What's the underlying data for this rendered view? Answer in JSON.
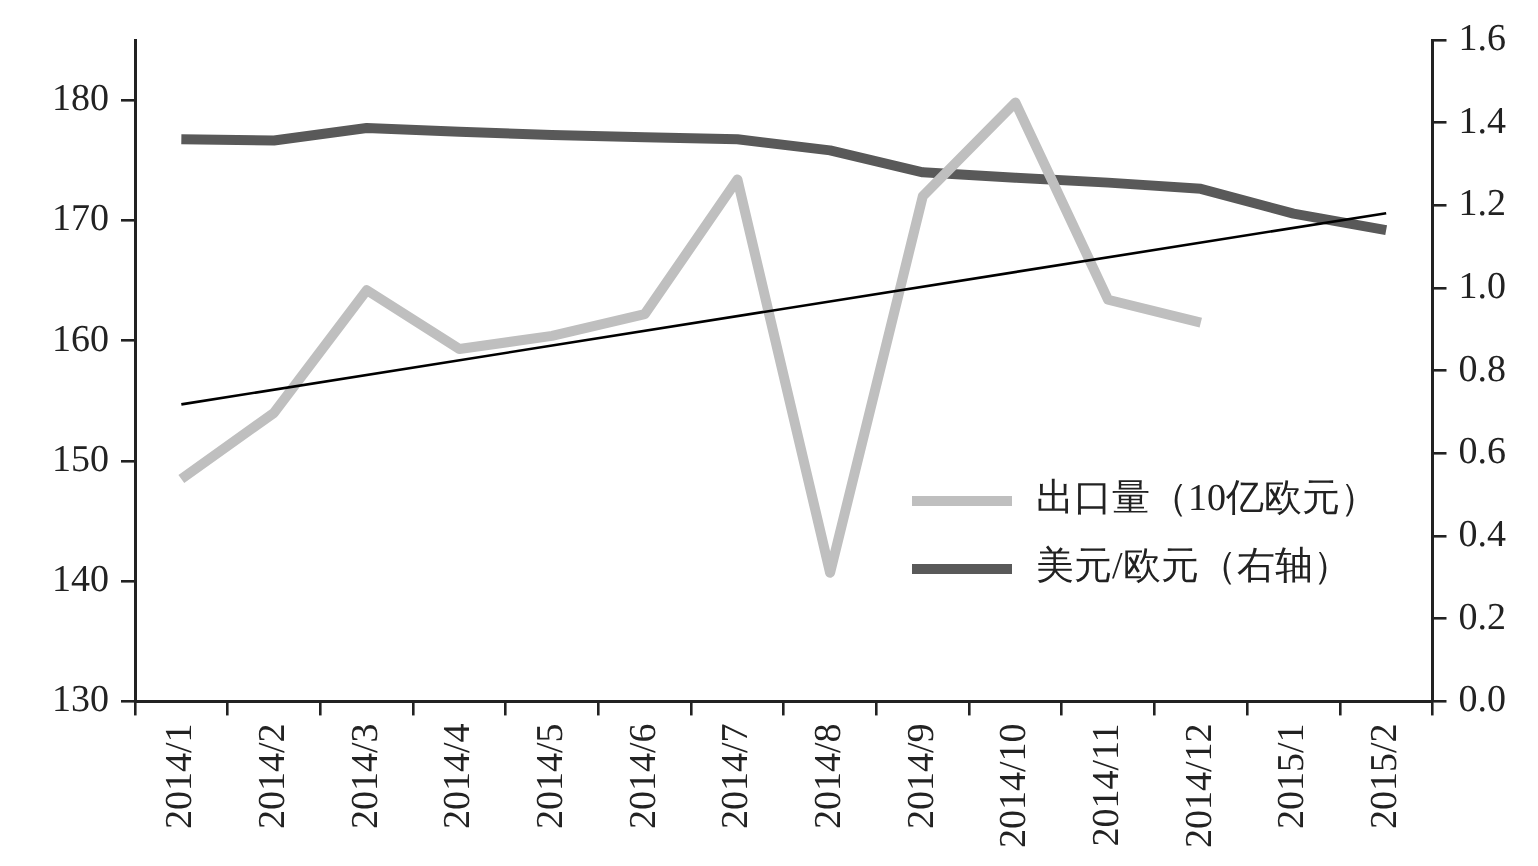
{
  "chart_data": {
    "type": "line",
    "categories": [
      "2014/1",
      "2014/2",
      "2014/3",
      "2014/4",
      "2014/5",
      "2014/6",
      "2014/7",
      "2014/8",
      "2014/9",
      "2014/10",
      "2014/11",
      "2014/12",
      "2015/1",
      "2015/2"
    ],
    "series": [
      {
        "name": "出口量（10亿欧元）",
        "color": "#bfbfbf",
        "values": [
          148.5,
          154.0,
          164.2,
          159.3,
          160.4,
          162.2,
          173.4,
          140.7,
          172.0,
          179.8,
          163.4,
          161.5,
          null,
          null
        ]
      },
      {
        "name": "美元/欧元（右轴）",
        "color": "#595959",
        "axis": "y2",
        "values": [
          1.36,
          1.357,
          1.387,
          1.378,
          1.37,
          1.365,
          1.36,
          1.333,
          1.28,
          1.267,
          1.255,
          1.24,
          1.18,
          1.14
        ]
      },
      {
        "type": "line",
        "color": "#000000",
        "x": [
          "2014/1",
          "2015/2"
        ],
        "values": [
          154.7,
          170.6
        ]
      }
    ],
    "ylim": [
      130,
      185
    ],
    "yticks": [
      130,
      140,
      150,
      160,
      170,
      180
    ],
    "y2lim": [
      0,
      1.6
    ],
    "y2ticks": [
      {
        "value": 0,
        "label": "0.0"
      },
      0.2,
      0.4,
      0.6,
      0.8,
      {
        "value": 1,
        "label": "1.0"
      },
      1.2,
      1.4,
      1.6
    ],
    "grid": false,
    "legend": "bottom right"
  }
}
